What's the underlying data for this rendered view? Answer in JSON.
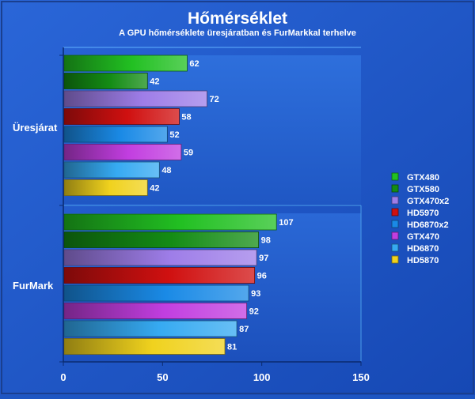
{
  "chart_data": {
    "type": "bar",
    "orientation": "horizontal",
    "title": "Hőmérséklet",
    "subtitle": "A GPU hőmérséklete üresjáratban és FurMarkkal terhelve",
    "categories": [
      "Üresjárat",
      "FurMark"
    ],
    "series": [
      {
        "name": "GTX480",
        "color": "#22c022",
        "values": [
          62,
          107
        ]
      },
      {
        "name": "GTX580",
        "color": "#148c14",
        "values": [
          42,
          98
        ]
      },
      {
        "name": "GTX470x2",
        "color": "#9e7de8",
        "values": [
          72,
          97
        ]
      },
      {
        "name": "HD5970",
        "color": "#d01010",
        "values": [
          58,
          96
        ]
      },
      {
        "name": "HD6870x2",
        "color": "#1a8ae6",
        "values": [
          52,
          93
        ]
      },
      {
        "name": "GTX470",
        "color": "#c23ee0",
        "values": [
          59,
          92
        ]
      },
      {
        "name": "HD6870",
        "color": "#36aaf2",
        "values": [
          48,
          87
        ]
      },
      {
        "name": "HD5870",
        "color": "#f0d21e",
        "values": [
          42,
          81
        ]
      }
    ],
    "xlim": [
      0,
      150
    ],
    "xticks": [
      0,
      50,
      100,
      150
    ],
    "grid": false,
    "legend_position": "right",
    "data_labels": true
  }
}
